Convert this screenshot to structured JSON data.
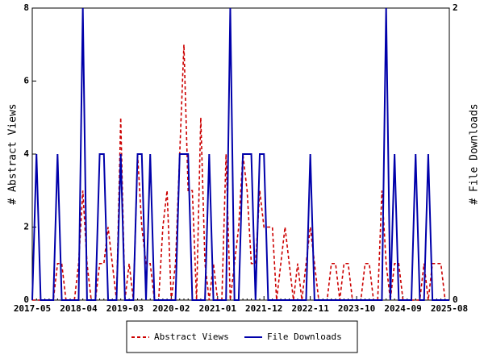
{
  "chart_data": {
    "type": "line",
    "categories": [
      "2017-05",
      null,
      null,
      null,
      null,
      null,
      null,
      null,
      null,
      null,
      null,
      "2018-04",
      null,
      null,
      null,
      null,
      null,
      null,
      null,
      null,
      null,
      null,
      "2019-03",
      null,
      null,
      null,
      null,
      null,
      null,
      null,
      null,
      null,
      null,
      "2020-02",
      null,
      null,
      null,
      null,
      null,
      null,
      null,
      null,
      null,
      null,
      "2021-01",
      null,
      null,
      null,
      null,
      null,
      null,
      null,
      null,
      null,
      null,
      "2021-12",
      null,
      null,
      null,
      null,
      null,
      null,
      null,
      null,
      null,
      null,
      "2022-11",
      null,
      null,
      null,
      null,
      null,
      null,
      null,
      null,
      null,
      null,
      "2023-10",
      null,
      null,
      null,
      null,
      null,
      null,
      null,
      null,
      null,
      null,
      "2024-09",
      null,
      null,
      null,
      null,
      null,
      null,
      null,
      null,
      null,
      null,
      "2025-08"
    ],
    "ylabel": "# Abstract Views",
    "y2label": "# File Downloads",
    "ylim": [
      0,
      8
    ],
    "yticks": [
      0,
      2,
      4,
      6,
      8
    ],
    "y2lim": [
      0,
      2
    ],
    "y2ticks": [
      0,
      2
    ],
    "grid": false,
    "legend": "bottom",
    "series": [
      {
        "name": "Abstract Views",
        "color": "#cc0000",
        "linestyle": "dashed",
        "values": [
          0,
          0,
          0,
          0,
          0,
          0,
          1,
          1,
          0,
          0,
          0,
          1,
          3,
          1,
          0,
          0,
          1,
          1,
          2,
          1,
          0,
          5,
          0,
          1,
          0,
          4,
          2,
          1,
          1,
          0,
          0,
          2,
          3,
          0,
          1,
          4,
          7,
          3,
          3,
          0,
          5,
          1,
          0,
          1,
          0,
          0,
          4,
          0,
          1,
          2,
          4,
          3,
          1,
          1,
          3,
          2,
          2,
          2,
          0,
          1,
          2,
          1,
          0,
          1,
          0,
          1,
          2,
          1,
          0,
          0,
          0,
          1,
          1,
          0,
          1,
          1,
          0,
          0,
          0,
          1,
          1,
          0,
          0,
          3,
          1,
          0,
          1,
          1,
          0,
          0,
          0,
          0,
          0,
          1,
          0,
          1,
          1,
          1,
          0,
          0
        ]
      },
      {
        "name": "File Downloads",
        "color": "#0000aa",
        "linestyle": "solid",
        "axis": "y2",
        "values": [
          0,
          1,
          0,
          0,
          0,
          0,
          1,
          0,
          0,
          0,
          0,
          0,
          2,
          0,
          0,
          0,
          1,
          1,
          0,
          0,
          0,
          1,
          0,
          0,
          0,
          1,
          1,
          0,
          1,
          0,
          0,
          0,
          0,
          0,
          0,
          1,
          1,
          1,
          0,
          0,
          0,
          0,
          1,
          0,
          0,
          0,
          0,
          2,
          0,
          0,
          1,
          1,
          1,
          0,
          1,
          1,
          0,
          0,
          0,
          0,
          0,
          0,
          0,
          0,
          0,
          0,
          1,
          0,
          0,
          0,
          0,
          0,
          0,
          0,
          0,
          0,
          0,
          0,
          0,
          0,
          0,
          0,
          0,
          0,
          2,
          0,
          1,
          0,
          0,
          0,
          0,
          1,
          0,
          0,
          1,
          0,
          0,
          0,
          0,
          0
        ]
      }
    ]
  }
}
